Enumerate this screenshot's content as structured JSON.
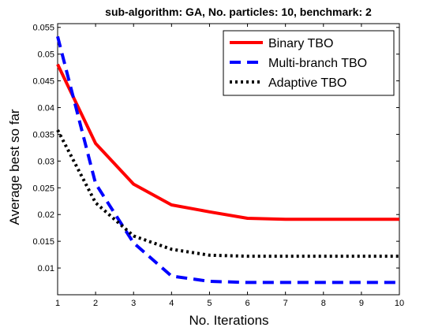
{
  "chart_data": {
    "type": "line",
    "title": "sub-algorithm: GA, No. particles: 10, benchmark: 2",
    "xlabel": "No. Iterations",
    "ylabel": "Average best so far",
    "xlim": [
      1,
      10
    ],
    "ylim": [
      0.005,
      0.0557
    ],
    "xticks": [
      "1",
      "2",
      "3",
      "4",
      "5",
      "6",
      "7",
      "8",
      "9",
      "10"
    ],
    "yticks": [
      "0.01",
      "0.015",
      "0.02",
      "0.025",
      "0.03",
      "0.035",
      "0.04",
      "0.045",
      "0.05",
      "0.055"
    ],
    "grid": false,
    "legend_position": "top-right",
    "x": [
      1,
      2,
      3,
      4,
      5,
      6,
      7,
      8,
      9,
      10
    ],
    "series": [
      {
        "name": "Binary TBO",
        "color": "#ff0000",
        "style": "solid",
        "values": [
          0.0481,
          0.0333,
          0.0257,
          0.0218,
          0.0205,
          0.0193,
          0.0191,
          0.0191,
          0.0191,
          0.0191
        ]
      },
      {
        "name": "Multi-branch TBO",
        "color": "#0000ff",
        "style": "dashed",
        "values": [
          0.0533,
          0.0258,
          0.0147,
          0.0085,
          0.0075,
          0.0073,
          0.0073,
          0.0073,
          0.0073,
          0.0073
        ]
      },
      {
        "name": "Adaptive TBO",
        "color": "#000000",
        "style": "dotted",
        "values": [
          0.0358,
          0.0222,
          0.016,
          0.0135,
          0.0124,
          0.0122,
          0.0122,
          0.0122,
          0.0122,
          0.0122
        ]
      }
    ]
  }
}
